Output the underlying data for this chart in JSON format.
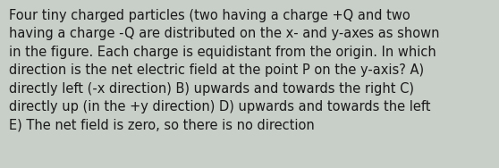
{
  "text": "Four tiny charged particles (two having a charge +Q and two\nhaving a charge -Q are distributed on the x- and y-axes as shown\nin the figure. Each charge is equidistant from the origin. In which\ndirection is the net electric field at the point P on the y-axis? A)\ndirectly left (-x direction) B) upwards and towards the right C)\ndirectly up (in the +y direction) D) upwards and towards the left\nE) The net field is zero, so there is no direction",
  "background_color": "#c8cec8",
  "text_color": "#1a1a1a",
  "font_size": 10.5,
  "fig_width": 5.58,
  "fig_height": 1.88,
  "dpi": 100
}
